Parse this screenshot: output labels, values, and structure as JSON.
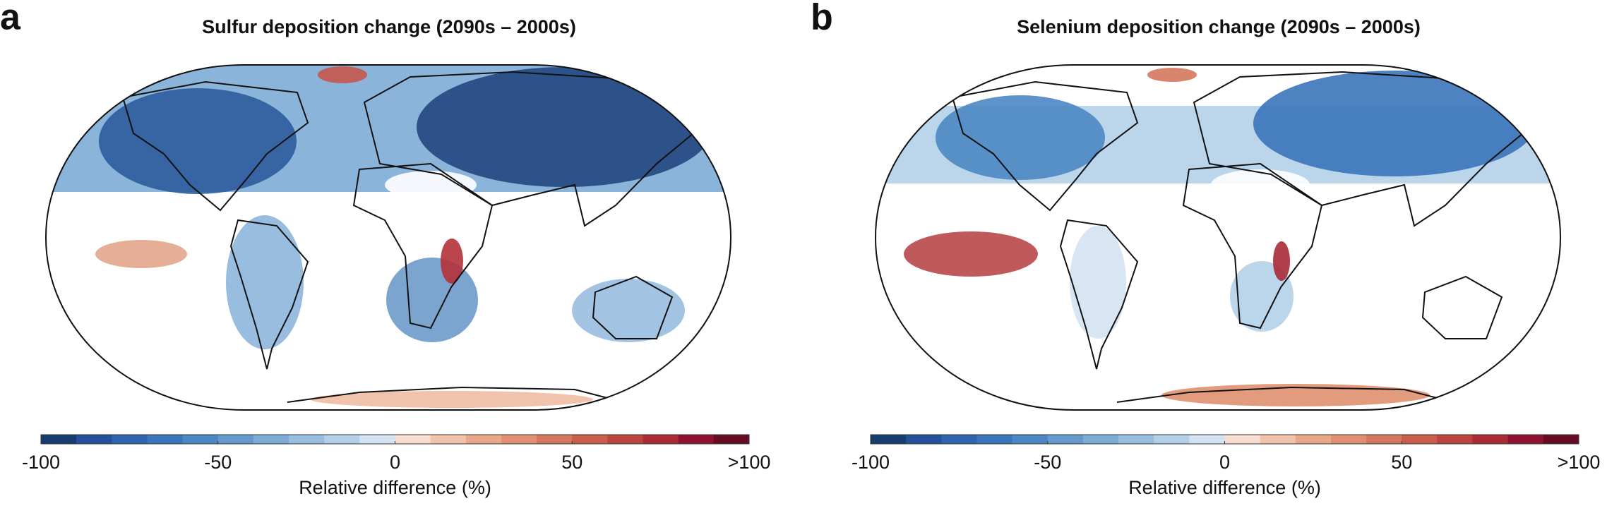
{
  "panels": [
    {
      "label": "a",
      "title": "Sulfur deposition change (2090s – 2000s)",
      "colorbar": {
        "lim": [
          -100,
          100
        ],
        "ticks": [
          -100,
          -50,
          0,
          50,
          {
            "value": 100,
            "label": ">100"
          }
        ],
        "label": "Relative difference (%)",
        "colors": [
          "#173c6e",
          "#22519a",
          "#2e63ae",
          "#3b74ba",
          "#4d87c3",
          "#6699cc",
          "#7eacd6",
          "#98bedf",
          "#b4d0e8",
          "#d3e3f1",
          "#f8ddd0",
          "#f2c3ab",
          "#e8a98b",
          "#e09070",
          "#d5775c",
          "#c95d4c",
          "#bb4340",
          "#a82b36",
          "#8c1430",
          "#650b24"
        ]
      }
    },
    {
      "label": "b",
      "title": "Selenium deposition change (2090s – 2000s)",
      "colorbar": {
        "lim": [
          -100,
          100
        ],
        "ticks": [
          -100,
          -50,
          0,
          50,
          {
            "value": 100,
            "label": ">100"
          }
        ],
        "label": "Relative difference (%)",
        "colors": [
          "#173c6e",
          "#22519a",
          "#2e63ae",
          "#3b74ba",
          "#4d87c3",
          "#6699cc",
          "#7eacd6",
          "#98bedf",
          "#b4d0e8",
          "#d3e3f1",
          "#f8ddd0",
          "#f2c3ab",
          "#e8a98b",
          "#e09070",
          "#d5775c",
          "#c95d4c",
          "#bb4340",
          "#a82b36",
          "#8c1430",
          "#650b24"
        ]
      }
    }
  ]
}
